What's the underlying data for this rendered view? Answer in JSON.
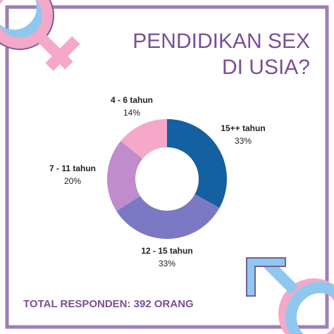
{
  "chart_data": {
    "type": "donut",
    "title": [
      "PENDIDIKAN SEX",
      "DI USIA?"
    ],
    "categories": [
      "15++ tahun",
      "12 - 15 tahun",
      "7 - 11 tahun",
      "4 - 6 tahun"
    ],
    "values": [
      33,
      33,
      20,
      14
    ],
    "value_labels": [
      "33%",
      "33%",
      "20%",
      "14%"
    ],
    "colors": [
      "#1560a0",
      "#7b78c4",
      "#c08ccc",
      "#f6a8c9"
    ],
    "annotation": "TOTAL RESPONDEN: 392 ORANG"
  }
}
